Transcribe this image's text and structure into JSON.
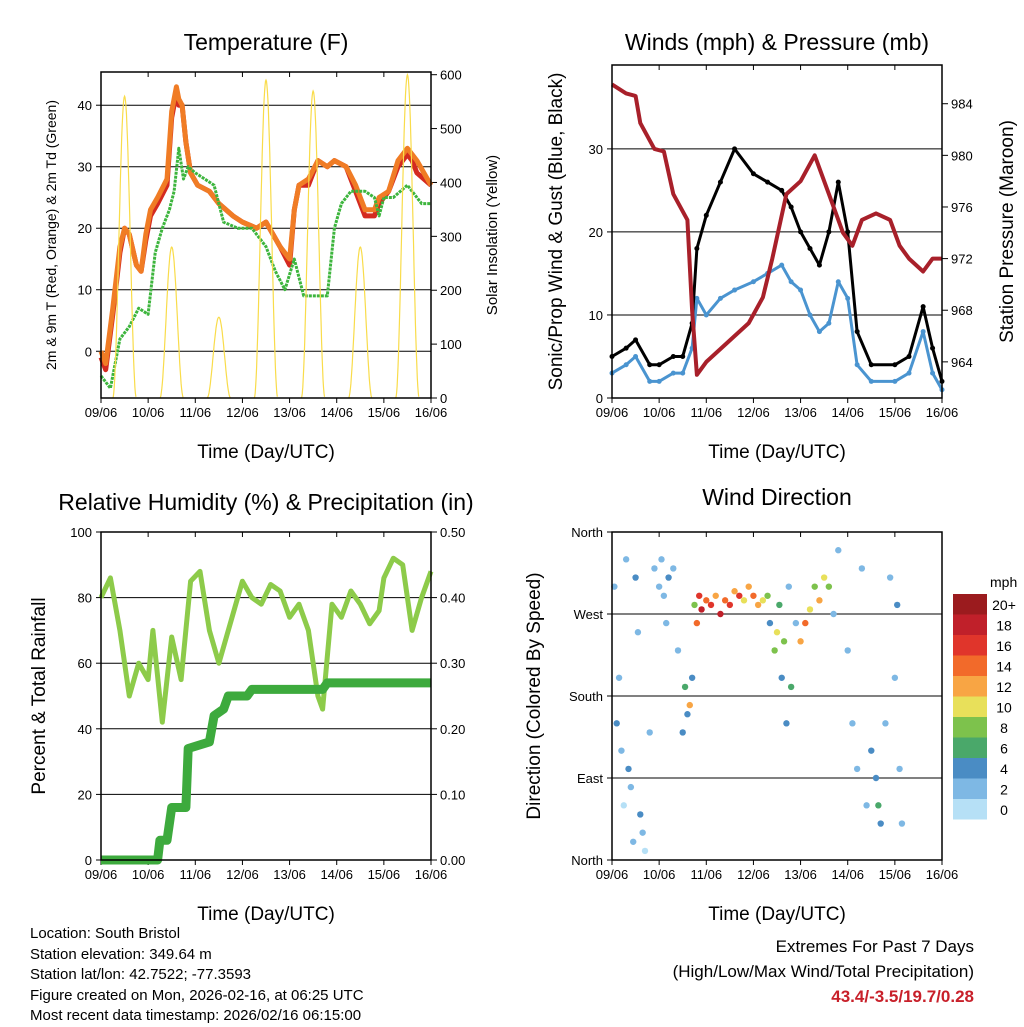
{
  "chart_data": [
    {
      "type": "line",
      "title": "Temperature (F)",
      "xlabel": "Time (Day/UTC)",
      "ylabel": "2m & 9m T (Red, Orange) & 2m Td (Green)",
      "ylabel_right": "Solar Insolation (Yellow)",
      "xticks": [
        "09/06",
        "10/06",
        "11/06",
        "12/06",
        "13/06",
        "14/06",
        "15/06",
        "16/06"
      ],
      "xlim": [
        0,
        7
      ],
      "ylim": [
        -7.6,
        45.4
      ],
      "yticks": [
        0,
        10,
        20,
        30,
        40
      ],
      "ylim_right": [
        0,
        605
      ],
      "yticks_right": [
        0,
        100,
        200,
        300,
        400,
        500,
        600
      ],
      "series": [
        {
          "name": "2m T",
          "color": "#d42a20",
          "x": [
            0,
            0.1,
            0.25,
            0.4,
            0.5,
            0.6,
            0.75,
            0.85,
            0.95,
            1.05,
            1.2,
            1.4,
            1.5,
            1.6,
            1.65,
            1.72,
            1.8,
            1.9,
            2.05,
            2.3,
            2.5,
            2.8,
            3.0,
            3.3,
            3.5,
            3.8,
            4.0,
            4.1,
            4.2,
            4.4,
            4.6,
            4.8,
            4.95,
            5.2,
            5.4,
            5.6,
            5.8,
            5.9,
            6.1,
            6.3,
            6.5,
            6.6,
            6.7,
            6.85,
            7
          ],
          "y": [
            -1,
            -3,
            6,
            16,
            20,
            19,
            14,
            13,
            18,
            22,
            24,
            27,
            38,
            42,
            40,
            40,
            34,
            29,
            27,
            26,
            24,
            22,
            21,
            20,
            21,
            17,
            14,
            23,
            27,
            27,
            31,
            30,
            31,
            30,
            26,
            22,
            22,
            24,
            26,
            30,
            32,
            31,
            29,
            28,
            27
          ]
        },
        {
          "name": "9m T",
          "color": "#f07c25",
          "x": [
            0,
            0.1,
            0.25,
            0.4,
            0.5,
            0.6,
            0.75,
            0.85,
            0.95,
            1.05,
            1.2,
            1.4,
            1.5,
            1.6,
            1.65,
            1.72,
            1.8,
            1.9,
            2.05,
            2.3,
            2.5,
            2.8,
            3.0,
            3.3,
            3.5,
            3.8,
            4.0,
            4.1,
            4.2,
            4.4,
            4.6,
            4.8,
            4.95,
            5.2,
            5.4,
            5.6,
            5.8,
            5.9,
            6.1,
            6.3,
            6.5,
            6.6,
            6.7,
            6.85,
            7
          ],
          "y": [
            0,
            -2,
            7,
            17,
            20,
            19,
            14,
            13,
            19,
            23,
            25,
            28,
            39,
            43,
            41,
            40,
            34,
            29,
            27,
            26,
            24,
            22,
            21,
            20,
            21,
            17,
            15,
            23,
            27,
            28,
            31,
            30,
            31,
            30,
            27,
            23,
            23,
            25,
            26,
            31,
            33,
            32,
            31,
            29,
            27
          ]
        },
        {
          "name": "2m Td",
          "color": "#3db53d",
          "x": [
            0,
            0.2,
            0.4,
            0.6,
            0.8,
            1.0,
            1.15,
            1.3,
            1.45,
            1.55,
            1.65,
            1.75,
            1.85,
            2.0,
            2.2,
            2.4,
            2.6,
            2.9,
            3.2,
            3.5,
            3.7,
            3.9,
            4.1,
            4.3,
            4.6,
            4.8,
            4.95,
            5.1,
            5.3,
            5.6,
            5.8,
            5.9,
            6.0,
            6.2,
            6.5,
            6.8,
            7
          ],
          "y": [
            -4,
            -6,
            2,
            4,
            7,
            6,
            16,
            20,
            23,
            26,
            33,
            28,
            30,
            29,
            28,
            27,
            21,
            20,
            20,
            17,
            13,
            10,
            15,
            9,
            9,
            9,
            20,
            24,
            26,
            26,
            25,
            22,
            25,
            25,
            27,
            24,
            24
          ]
        },
        {
          "name": "Solar Insolation",
          "color": "#f9dc4a",
          "axis": "right",
          "peaks": [
            {
              "day": 0.5,
              "value": 560
            },
            {
              "day": 1.5,
              "value": 280
            },
            {
              "day": 2.5,
              "value": 150
            },
            {
              "day": 3.5,
              "value": 590
            },
            {
              "day": 4.5,
              "value": 570
            },
            {
              "day": 5.5,
              "value": 280
            },
            {
              "day": 6.5,
              "value": 600
            }
          ]
        }
      ]
    },
    {
      "type": "line",
      "title": "Winds (mph) & Pressure (mb)",
      "xlabel": "Time (Day/UTC)",
      "ylabel": "Sonic/Prop Wind & Gust (Blue, Black)",
      "ylabel_right": "Station Pressure (Maroon)",
      "xticks": [
        "09/06",
        "10/06",
        "11/06",
        "12/06",
        "13/06",
        "14/06",
        "15/06",
        "16/06"
      ],
      "xlim": [
        0,
        7
      ],
      "ylim": [
        0,
        40.1
      ],
      "yticks": [
        0,
        10,
        20,
        30
      ],
      "ylim_right": [
        961.2,
        987
      ],
      "yticks_right": [
        964,
        968,
        972,
        976,
        980,
        984
      ],
      "series": [
        {
          "name": "Sonic/Prop Wind",
          "color": "#4a94d0",
          "x": [
            0,
            0.3,
            0.5,
            0.8,
            1,
            1.3,
            1.5,
            1.7,
            1.8,
            2,
            2.3,
            2.6,
            3,
            3.3,
            3.6,
            3.8,
            4,
            4.2,
            4.4,
            4.6,
            4.8,
            5,
            5.2,
            5.5,
            6,
            6.3,
            6.6,
            6.8,
            7
          ],
          "y": [
            3,
            4,
            5,
            2,
            2,
            3,
            3,
            6,
            12,
            10,
            12,
            13,
            14,
            15,
            16,
            14,
            13,
            10,
            8,
            9,
            14,
            12,
            4,
            2,
            2,
            3,
            8,
            3,
            1
          ]
        },
        {
          "name": "Gust",
          "color": "#000000",
          "x": [
            0,
            0.3,
            0.5,
            0.8,
            1,
            1.3,
            1.5,
            1.7,
            1.8,
            2,
            2.3,
            2.6,
            3,
            3.3,
            3.6,
            3.8,
            4,
            4.2,
            4.4,
            4.6,
            4.8,
            5,
            5.2,
            5.5,
            6,
            6.3,
            6.6,
            6.8,
            7
          ],
          "y": [
            5,
            6,
            7,
            4,
            4,
            5,
            5,
            9,
            18,
            22,
            26,
            30,
            27,
            26,
            25,
            23,
            20,
            18,
            16,
            20,
            26,
            20,
            8,
            4,
            4,
            5,
            11,
            6,
            2
          ]
        },
        {
          "name": "Station Pressure",
          "color": "#a8202a",
          "axis": "right",
          "x": [
            0,
            0.3,
            0.5,
            0.6,
            0.9,
            1.1,
            1.3,
            1.6,
            1.7,
            1.8,
            2.0,
            2.3,
            2.6,
            2.9,
            3.2,
            3.4,
            3.7,
            4.0,
            4.3,
            4.6,
            4.9,
            5.1,
            5.3,
            5.6,
            5.9,
            6.1,
            6.3,
            6.6,
            6.8,
            7
          ],
          "y": [
            985.5,
            984.8,
            984.6,
            982.5,
            980.5,
            980.3,
            977,
            975,
            968,
            963,
            964,
            965,
            966,
            967,
            969,
            972,
            977,
            978,
            980,
            977,
            974,
            973,
            975,
            975.5,
            975,
            973,
            972,
            971,
            972,
            972
          ]
        }
      ]
    },
    {
      "type": "line",
      "title": "Relative Humidity (%) & Precipitation (in)",
      "xlabel": "Time (Day/UTC)",
      "ylabel": "Percent & Total Rainfall",
      "xticks": [
        "09/06",
        "10/06",
        "11/06",
        "12/06",
        "13/06",
        "14/06",
        "15/06",
        "16/06"
      ],
      "xlim": [
        0,
        7
      ],
      "ylim": [
        0,
        100
      ],
      "yticks": [
        0,
        20,
        40,
        60,
        80,
        100
      ],
      "ylim_right": [
        0,
        0.5
      ],
      "yticks_right": [
        "0.00",
        "0.10",
        "0.20",
        "0.30",
        "0.40",
        "0.50"
      ],
      "series": [
        {
          "name": "Relative Humidity",
          "color": "#8dcb4a",
          "x": [
            0,
            0.2,
            0.4,
            0.6,
            0.8,
            1,
            1.1,
            1.3,
            1.5,
            1.7,
            1.9,
            2.1,
            2.3,
            2.5,
            2.8,
            3.0,
            3.2,
            3.4,
            3.6,
            3.8,
            4.0,
            4.2,
            4.4,
            4.6,
            4.7,
            4.9,
            5.1,
            5.3,
            5.5,
            5.7,
            5.9,
            6.0,
            6.2,
            6.4,
            6.6,
            6.8,
            7
          ],
          "y": [
            80,
            86,
            70,
            50,
            60,
            55,
            70,
            42,
            68,
            55,
            85,
            88,
            70,
            60,
            75,
            85,
            80,
            78,
            84,
            82,
            74,
            78,
            70,
            50,
            46,
            78,
            74,
            82,
            78,
            72,
            76,
            86,
            92,
            90,
            70,
            80,
            88
          ]
        },
        {
          "name": "Total Precipitation",
          "color": "#3daa3d",
          "axis": "right",
          "x": [
            0,
            1.2,
            1.25,
            1.4,
            1.5,
            1.8,
            1.85,
            2.3,
            2.4,
            2.6,
            2.7,
            3.1,
            3.2,
            4.7,
            4.8,
            7
          ],
          "y": [
            0,
            0,
            0.03,
            0.03,
            0.08,
            0.08,
            0.17,
            0.18,
            0.22,
            0.23,
            0.25,
            0.25,
            0.26,
            0.26,
            0.27,
            0.27
          ]
        }
      ]
    },
    {
      "type": "scatter",
      "title": "Wind Direction",
      "xlabel": "Time (Day/UTC)",
      "ylabel": "Direction (Colored By Speed)",
      "xticks": [
        "09/06",
        "10/06",
        "11/06",
        "12/06",
        "13/06",
        "14/06",
        "15/06",
        "16/06"
      ],
      "xlim": [
        0,
        7
      ],
      "ylim": [
        0,
        360
      ],
      "yticks": [
        {
          "v": 0,
          "label": "North"
        },
        {
          "v": 90,
          "label": "East"
        },
        {
          "v": 180,
          "label": "South"
        },
        {
          "v": 270,
          "label": "West"
        },
        {
          "v": 360,
          "label": "North"
        }
      ],
      "legend": {
        "title": "mph",
        "labels": [
          "20+",
          "18",
          "16",
          "14",
          "12",
          "10",
          "8",
          "6",
          "4",
          "2",
          "0"
        ],
        "colors": [
          "#9b1b1e",
          "#c0202a",
          "#e0352b",
          "#f26a2a",
          "#f8a544",
          "#e8e05a",
          "#7dc24c",
          "#4aa86a",
          "#4a8cc4",
          "#7eb8e4",
          "#b6e0f6"
        ]
      },
      "points": [
        [
          0.05,
          300,
          3
        ],
        [
          0.1,
          150,
          4
        ],
        [
          0.15,
          200,
          2
        ],
        [
          0.2,
          120,
          3
        ],
        [
          0.25,
          60,
          1
        ],
        [
          0.3,
          330,
          2
        ],
        [
          0.35,
          100,
          4
        ],
        [
          0.4,
          80,
          3
        ],
        [
          0.45,
          20,
          2
        ],
        [
          0.5,
          310,
          4
        ],
        [
          0.55,
          250,
          3
        ],
        [
          0.6,
          50,
          4
        ],
        [
          0.65,
          30,
          2
        ],
        [
          0.7,
          10,
          1
        ],
        [
          0.8,
          140,
          2
        ],
        [
          0.9,
          320,
          2
        ],
        [
          1.0,
          300,
          3
        ],
        [
          1.05,
          330,
          2
        ],
        [
          1.1,
          290,
          3
        ],
        [
          1.15,
          260,
          2
        ],
        [
          1.2,
          310,
          4
        ],
        [
          1.3,
          320,
          3
        ],
        [
          1.4,
          230,
          3
        ],
        [
          1.5,
          140,
          5
        ],
        [
          1.55,
          190,
          6
        ],
        [
          1.6,
          160,
          4
        ],
        [
          1.65,
          170,
          13
        ],
        [
          1.7,
          200,
          4
        ],
        [
          1.75,
          280,
          9
        ],
        [
          1.8,
          260,
          14
        ],
        [
          1.85,
          290,
          16
        ],
        [
          1.9,
          275,
          18
        ],
        [
          2.0,
          285,
          14
        ],
        [
          2.1,
          280,
          16
        ],
        [
          2.2,
          290,
          12
        ],
        [
          2.3,
          270,
          18
        ],
        [
          2.4,
          285,
          14
        ],
        [
          2.5,
          280,
          16
        ],
        [
          2.6,
          295,
          12
        ],
        [
          2.7,
          290,
          16
        ],
        [
          2.8,
          285,
          10
        ],
        [
          2.9,
          300,
          12
        ],
        [
          3.0,
          290,
          14
        ],
        [
          3.1,
          280,
          12
        ],
        [
          3.2,
          285,
          10
        ],
        [
          3.3,
          290,
          8
        ],
        [
          3.35,
          260,
          5
        ],
        [
          3.45,
          230,
          9
        ],
        [
          3.5,
          250,
          10
        ],
        [
          3.55,
          280,
          6
        ],
        [
          3.6,
          200,
          4
        ],
        [
          3.65,
          240,
          9
        ],
        [
          3.7,
          150,
          5
        ],
        [
          3.75,
          300,
          3
        ],
        [
          3.8,
          190,
          6
        ],
        [
          3.9,
          260,
          3
        ],
        [
          4.0,
          240,
          12
        ],
        [
          4.1,
          260,
          14
        ],
        [
          4.2,
          275,
          10
        ],
        [
          4.3,
          300,
          8
        ],
        [
          4.4,
          285,
          12
        ],
        [
          4.5,
          310,
          10
        ],
        [
          4.6,
          300,
          8
        ],
        [
          4.7,
          270,
          3
        ],
        [
          4.8,
          340,
          2
        ],
        [
          5.0,
          230,
          3
        ],
        [
          5.1,
          150,
          2
        ],
        [
          5.2,
          100,
          3
        ],
        [
          5.3,
          320,
          2
        ],
        [
          5.4,
          60,
          2
        ],
        [
          5.5,
          120,
          4
        ],
        [
          5.6,
          90,
          5
        ],
        [
          5.65,
          60,
          7
        ],
        [
          5.7,
          40,
          4
        ],
        [
          5.8,
          150,
          2
        ],
        [
          5.9,
          310,
          3
        ],
        [
          6.0,
          200,
          2
        ],
        [
          6.05,
          280,
          4
        ],
        [
          6.1,
          100,
          3
        ],
        [
          6.15,
          40,
          2
        ]
      ]
    }
  ],
  "footer": {
    "location": "Location: South Bristol",
    "elevation": "Station elevation: 349.64 m",
    "latlon": "Station lat/lon: 42.7522; -77.3593",
    "created": "Figure created on Mon, 2026-02-16, at 06:25 UTC",
    "recent": "Most recent data timestamp: 2026/02/16 06:15:00"
  },
  "extremes": {
    "title": "Extremes For Past 7 Days",
    "subtitle": "(High/Low/Max Wind/Total Precipitation)",
    "values": "43.4/-3.5/19.7/0.28"
  }
}
